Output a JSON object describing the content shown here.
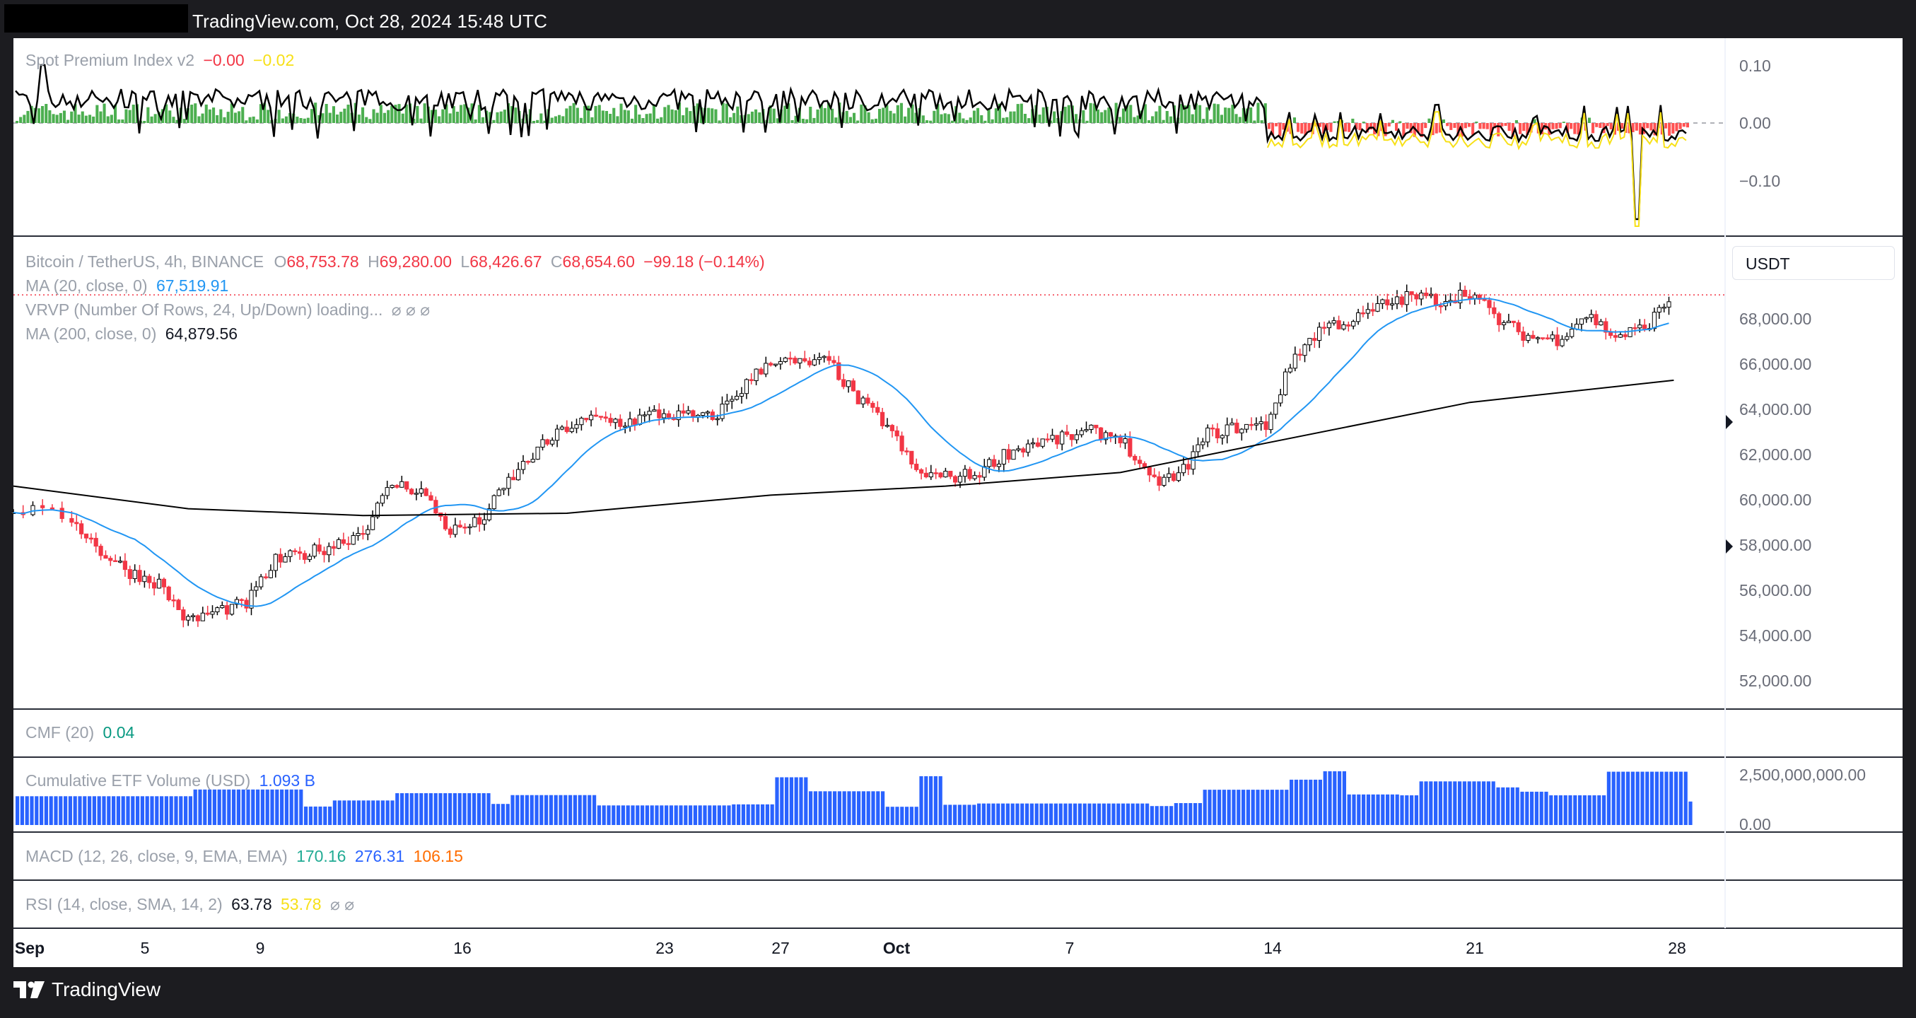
{
  "header": {
    "source_text": "TradingView.com, Oct 28, 2024 15:48 UTC"
  },
  "footer": {
    "brand": "TradingView"
  },
  "currency": "USDT",
  "spi": {
    "name": "Spot Premium Index v2",
    "v1": "−0.00",
    "v2": "−0.02",
    "ticks": [
      "0.10",
      "0.00",
      "−0.10"
    ]
  },
  "main": {
    "symbol": "Bitcoin / TetherUS, 4h, BINANCE",
    "o_lbl": "O",
    "o": "68,753.78",
    "h_lbl": "H",
    "h": "69,280.00",
    "l_lbl": "L",
    "l": "68,426.67",
    "c_lbl": "C",
    "c": "68,654.60",
    "chg": "−99.18 (−0.14%)",
    "ma20_name": "MA (20, close, 0)",
    "ma20_val": "67,519.91",
    "vrvp": "VRVP (Number Of Rows, 24, Up/Down) loading...",
    "vrvp_icons": "⌀ ⌀ ⌀",
    "ma200_name": "MA (200, close, 0)",
    "ma200_val": "64,879.56",
    "price_ticks": [
      "68,000.00",
      "66,000.00",
      "64,000.00",
      "62,000.00",
      "60,000.00",
      "58,000.00",
      "56,000.00",
      "54,000.00",
      "52,000.00"
    ]
  },
  "cmf": {
    "name": "CMF (20)",
    "value": "0.04"
  },
  "etf": {
    "name": "Cumulative ETF Volume (USD)",
    "value": "1.093 B",
    "ticks": [
      "2,500,000,000.00",
      "0.00"
    ]
  },
  "macd": {
    "name": "MACD (12, 26, close, 9, EMA, EMA)",
    "v1": "170.16",
    "v2": "276.31",
    "v3": "106.15"
  },
  "rsi": {
    "name": "RSI (14, close, SMA, 14, 2)",
    "v1": "63.78",
    "v2": "53.78",
    "icons": "⌀  ⌀"
  },
  "time_axis": [
    {
      "label": "Sep",
      "bold": true
    },
    {
      "label": "5"
    },
    {
      "label": "9"
    },
    {
      "label": "16"
    },
    {
      "label": "23"
    },
    {
      "label": "27"
    },
    {
      "label": "Oct",
      "bold": true
    },
    {
      "label": "7"
    },
    {
      "label": "14"
    },
    {
      "label": "21"
    },
    {
      "label": "28"
    }
  ],
  "colors": {
    "up": "#22ab94",
    "down": "#f23645",
    "ma20": "#2196f3",
    "ma200": "#000000",
    "etf": "#2962ff",
    "spi_up": "#4caf50",
    "spi_down": "#ff5252"
  },
  "chart_data": [
    {
      "type": "candlestick",
      "title": "Bitcoin / TetherUS, 4h, BINANCE",
      "ylabel": "USDT",
      "ylim": [
        51000,
        70000
      ],
      "x_range": [
        "2024-09-01",
        "2024-10-28"
      ],
      "close_path": [
        [
          "2024-09-01",
          59200
        ],
        [
          "2024-09-03",
          58800
        ],
        [
          "2024-09-04",
          57300
        ],
        [
          "2024-09-05",
          56400
        ],
        [
          "2024-09-06",
          55900
        ],
        [
          "2024-09-07",
          54200
        ],
        [
          "2024-09-08",
          54700
        ],
        [
          "2024-09-09",
          55000
        ],
        [
          "2024-09-10",
          56900
        ],
        [
          "2024-09-11",
          57200
        ],
        [
          "2024-09-12",
          57600
        ],
        [
          "2024-09-13",
          58200
        ],
        [
          "2024-09-14",
          60300
        ],
        [
          "2024-09-15",
          60000
        ],
        [
          "2024-09-16",
          58200
        ],
        [
          "2024-09-17",
          58600
        ],
        [
          "2024-09-18",
          60400
        ],
        [
          "2024-09-19",
          61800
        ],
        [
          "2024-09-20",
          62800
        ],
        [
          "2024-09-21",
          63200
        ],
        [
          "2024-09-22",
          63000
        ],
        [
          "2024-09-23",
          63400
        ],
        [
          "2024-09-24",
          63300
        ],
        [
          "2024-09-25",
          63200
        ],
        [
          "2024-09-26",
          64500
        ],
        [
          "2024-09-27",
          65800
        ],
        [
          "2024-09-28",
          65600
        ],
        [
          "2024-09-29",
          65700
        ],
        [
          "2024-09-30",
          64000
        ],
        [
          "2024-10-01",
          62900
        ],
        [
          "2024-10-02",
          60800
        ],
        [
          "2024-10-03",
          60600
        ],
        [
          "2024-10-04",
          60700
        ],
        [
          "2024-10-05",
          61600
        ],
        [
          "2024-10-06",
          62100
        ],
        [
          "2024-10-07",
          62300
        ],
        [
          "2024-10-08",
          62600
        ],
        [
          "2024-10-09",
          62400
        ],
        [
          "2024-10-10",
          60400
        ],
        [
          "2024-10-11",
          60600
        ],
        [
          "2024-10-12",
          62500
        ],
        [
          "2024-10-13",
          62800
        ],
        [
          "2024-10-14",
          62900
        ],
        [
          "2024-10-15",
          66000
        ],
        [
          "2024-10-16",
          67300
        ],
        [
          "2024-10-17",
          67500
        ],
        [
          "2024-10-18",
          68200
        ],
        [
          "2024-10-19",
          68600
        ],
        [
          "2024-10-20",
          68400
        ],
        [
          "2024-10-21",
          68800
        ],
        [
          "2024-10-22",
          67500
        ],
        [
          "2024-10-23",
          66800
        ],
        [
          "2024-10-24",
          66700
        ],
        [
          "2024-10-25",
          67800
        ],
        [
          "2024-10-26",
          66800
        ],
        [
          "2024-10-27",
          67200
        ],
        [
          "2024-10-28",
          68654.6
        ]
      ],
      "last": {
        "open": 68753.78,
        "high": 69280.0,
        "low": 68426.67,
        "close": 68654.6,
        "change": -99.18,
        "change_pct": -0.14
      },
      "ma20_last": 67519.91,
      "ma200_last": 64879.56
    },
    {
      "type": "bar",
      "title": "Cumulative ETF Volume (USD)",
      "ylim": [
        0,
        2500000000
      ],
      "value_last": 1093000000
    }
  ]
}
